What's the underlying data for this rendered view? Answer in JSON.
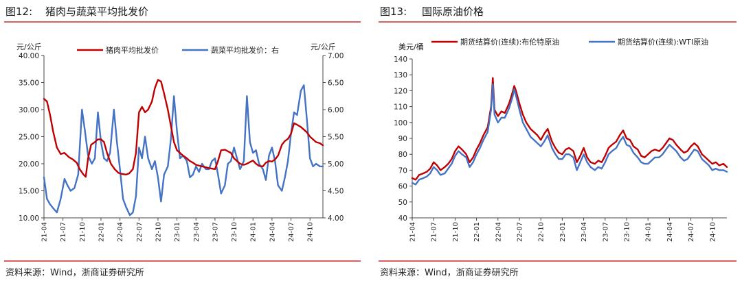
{
  "left_panel": {
    "figure_label": "图12:",
    "figure_title": "猪肉与蔬菜平均批发价",
    "source": "资料来源：Wind，浙商证券研究所"
  },
  "right_panel": {
    "figure_label": "图13:",
    "figure_title": "国际原油价格",
    "source": "资料来源：Wind，浙商证券研究所"
  },
  "colors": {
    "red": "#c00000",
    "blue": "#4472c4",
    "rule": "#c00000"
  },
  "chart_data": [
    {
      "type": "line",
      "y_left_unit": "元/公斤",
      "y_right_unit": "元/公斤",
      "ylim_left": [
        10,
        40
      ],
      "ylim_right": [
        4,
        7
      ],
      "y_left_ticks": [
        "10.00",
        "15.00",
        "20.00",
        "25.00",
        "30.00",
        "35.00",
        "40.00"
      ],
      "y_right_ticks": [
        "4.00",
        "4.50",
        "5.00",
        "5.50",
        "6.00",
        "6.50",
        "7.00"
      ],
      "x_ticks": [
        "21-04",
        "21-07",
        "21-10",
        "22-01",
        "22-04",
        "22-07",
        "22-10",
        "23-01",
        "23-04",
        "23-07",
        "23-10",
        "24-01",
        "24-04",
        "24-07",
        "24-10"
      ],
      "x_range": [
        2021.25,
        2024.92
      ],
      "grid": false,
      "legend_position": "top",
      "series": [
        {
          "name": "猪肉平均批发价",
          "axis": "left",
          "color": "#c00000",
          "x": [
            2021.25,
            2021.29,
            2021.33,
            2021.37,
            2021.42,
            2021.47,
            2021.52,
            2021.58,
            2021.63,
            2021.68,
            2021.72,
            2021.77,
            2021.8,
            2021.83,
            2021.87,
            2021.92,
            2021.96,
            2022.0,
            2022.04,
            2022.08,
            2022.13,
            2022.18,
            2022.23,
            2022.28,
            2022.33,
            2022.37,
            2022.42,
            2022.46,
            2022.5,
            2022.54,
            2022.58,
            2022.62,
            2022.67,
            2022.71,
            2022.75,
            2022.79,
            2022.83,
            2022.88,
            2022.92,
            2022.96,
            2023.0,
            2023.04,
            2023.08,
            2023.13,
            2023.17,
            2023.21,
            2023.25,
            2023.33,
            2023.42,
            2023.5,
            2023.54,
            2023.58,
            2023.63,
            2023.67,
            2023.71,
            2023.75,
            2023.79,
            2023.83,
            2023.88,
            2023.92,
            2023.96,
            2024.0,
            2024.04,
            2024.08,
            2024.13,
            2024.17,
            2024.21,
            2024.25,
            2024.29,
            2024.33,
            2024.38,
            2024.42,
            2024.46,
            2024.5,
            2024.54,
            2024.58,
            2024.63,
            2024.67,
            2024.71,
            2024.75,
            2024.79,
            2024.83,
            2024.88,
            2024.92
          ],
          "y": [
            32,
            31.5,
            29,
            26,
            23,
            21.8,
            22,
            21.2,
            20.8,
            20.2,
            19,
            18,
            17.6,
            21,
            23.5,
            24,
            24.5,
            24.5,
            24,
            22,
            20,
            19,
            18.3,
            18.1,
            18,
            18.2,
            19,
            22,
            29.5,
            30.5,
            29.5,
            30,
            31.5,
            34,
            35.5,
            35.2,
            33,
            30,
            27,
            24,
            22.5,
            22,
            21.5,
            21,
            20.5,
            20.2,
            19.8,
            19.5,
            19.2,
            19,
            20.5,
            22.5,
            22.6,
            22.3,
            22,
            21,
            20.5,
            20,
            19.8,
            20,
            20.3,
            20.6,
            20,
            19.6,
            19.5,
            20.2,
            20.5,
            20.4,
            20.8,
            21.5,
            23.5,
            24.2,
            24.6,
            25.5,
            27.5,
            27.2,
            26.8,
            26.3,
            25.8,
            25,
            24.5,
            24,
            23.8,
            23.4
          ]
        },
        {
          "name": "蔬菜平均批发价：右",
          "axis": "right",
          "color": "#4472c4",
          "x": [
            2021.25,
            2021.29,
            2021.33,
            2021.37,
            2021.42,
            2021.47,
            2021.52,
            2021.56,
            2021.6,
            2021.65,
            2021.7,
            2021.75,
            2021.79,
            2021.83,
            2021.88,
            2021.92,
            2021.96,
            2022.0,
            2022.04,
            2022.08,
            2022.12,
            2022.17,
            2022.21,
            2022.25,
            2022.29,
            2022.33,
            2022.38,
            2022.42,
            2022.46,
            2022.5,
            2022.54,
            2022.58,
            2022.62,
            2022.67,
            2022.71,
            2022.75,
            2022.79,
            2022.83,
            2022.88,
            2022.92,
            2022.96,
            2023.0,
            2023.04,
            2023.08,
            2023.13,
            2023.17,
            2023.21,
            2023.25,
            2023.29,
            2023.33,
            2023.38,
            2023.42,
            2023.46,
            2023.5,
            2023.54,
            2023.58,
            2023.63,
            2023.67,
            2023.71,
            2023.75,
            2023.79,
            2023.83,
            2023.88,
            2023.92,
            2023.96,
            2024.0,
            2024.04,
            2024.08,
            2024.13,
            2024.17,
            2024.21,
            2024.25,
            2024.29,
            2024.33,
            2024.38,
            2024.42,
            2024.46,
            2024.5,
            2024.54,
            2024.58,
            2024.63,
            2024.67,
            2024.71,
            2024.75,
            2024.79,
            2024.83,
            2024.88,
            2024.92
          ],
          "y": [
            4.75,
            4.35,
            4.25,
            4.18,
            4.1,
            4.35,
            4.72,
            4.6,
            4.5,
            4.55,
            4.8,
            6.0,
            5.6,
            5.15,
            5.0,
            5.1,
            5.95,
            5.4,
            5.1,
            5.05,
            5.2,
            6.0,
            5.4,
            4.9,
            4.35,
            4.2,
            4.05,
            4.1,
            4.4,
            5.3,
            5.1,
            5.5,
            5.1,
            4.9,
            5.05,
            4.75,
            4.3,
            4.8,
            4.95,
            5.45,
            6.25,
            5.6,
            5.1,
            5.15,
            5.05,
            4.75,
            4.8,
            4.95,
            4.85,
            5.0,
            4.9,
            4.9,
            5.05,
            5.1,
            4.8,
            4.45,
            4.6,
            5.0,
            5.05,
            5.3,
            5.1,
            4.9,
            5.05,
            6.25,
            5.4,
            5.2,
            5.25,
            5.0,
            4.9,
            4.7,
            5.15,
            5.3,
            5.05,
            4.6,
            4.5,
            4.75,
            5.05,
            5.55,
            5.95,
            5.9,
            6.35,
            6.45,
            5.8,
            5.1,
            4.95,
            5.0,
            4.95,
            4.95
          ]
        }
      ]
    },
    {
      "type": "line",
      "y_unit": "美元/桶",
      "ylim": [
        40,
        140
      ],
      "y_ticks": [
        "40",
        "50",
        "60",
        "70",
        "80",
        "90",
        "100",
        "110",
        "120",
        "130",
        "140"
      ],
      "x_ticks": [
        "21-04",
        "21-07",
        "21-10",
        "22-01",
        "22-04",
        "22-07",
        "22-10",
        "23-01",
        "23-04",
        "23-07",
        "23-10",
        "24-01",
        "24-04",
        "24-07",
        "24-10"
      ],
      "x_range": [
        2021.25,
        2024.92
      ],
      "grid": false,
      "legend_position": "top",
      "series": [
        {
          "name": "期货结算价(连续):布伦特原油",
          "color": "#c00000",
          "x": [
            2021.25,
            2021.29,
            2021.33,
            2021.38,
            2021.42,
            2021.46,
            2021.5,
            2021.54,
            2021.58,
            2021.63,
            2021.67,
            2021.71,
            2021.75,
            2021.79,
            2021.83,
            2021.88,
            2021.92,
            2021.96,
            2022.0,
            2022.04,
            2022.08,
            2022.13,
            2022.17,
            2022.19,
            2022.21,
            2022.25,
            2022.29,
            2022.33,
            2022.38,
            2022.42,
            2022.44,
            2022.46,
            2022.5,
            2022.54,
            2022.58,
            2022.63,
            2022.67,
            2022.71,
            2022.75,
            2022.79,
            2022.83,
            2022.88,
            2022.92,
            2022.96,
            2023.0,
            2023.04,
            2023.08,
            2023.13,
            2023.17,
            2023.21,
            2023.25,
            2023.29,
            2023.33,
            2023.38,
            2023.42,
            2023.46,
            2023.5,
            2023.54,
            2023.58,
            2023.63,
            2023.67,
            2023.71,
            2023.75,
            2023.79,
            2023.83,
            2023.88,
            2023.92,
            2023.96,
            2024.0,
            2024.04,
            2024.08,
            2024.13,
            2024.17,
            2024.21,
            2024.25,
            2024.29,
            2024.33,
            2024.38,
            2024.42,
            2024.46,
            2024.5,
            2024.54,
            2024.58,
            2024.63,
            2024.67,
            2024.71,
            2024.75,
            2024.79,
            2024.83,
            2024.88,
            2024.92
          ],
          "y": [
            65,
            64,
            67,
            68,
            69,
            71,
            75,
            73,
            70,
            72,
            74,
            77,
            82,
            85,
            83,
            80,
            75,
            78,
            83,
            87,
            92,
            97,
            110,
            128,
            108,
            104,
            107,
            106,
            112,
            119,
            123,
            120,
            112,
            105,
            100,
            96,
            94,
            92,
            89,
            93,
            96,
            88,
            84,
            81,
            80,
            83,
            84,
            82,
            75,
            79,
            84,
            78,
            75,
            74,
            76,
            75,
            79,
            84,
            86,
            88,
            92,
            95,
            90,
            89,
            85,
            83,
            79,
            78,
            80,
            82,
            83,
            82,
            84,
            87,
            90,
            89,
            86,
            83,
            81,
            82,
            85,
            87,
            85,
            80,
            78,
            76,
            74,
            75,
            73,
            74,
            72
          ]
        },
        {
          "name": "期货结算价(连续):WTI原油",
          "color": "#4472c4",
          "x": [
            2021.25,
            2021.29,
            2021.33,
            2021.38,
            2021.42,
            2021.46,
            2021.5,
            2021.54,
            2021.58,
            2021.63,
            2021.67,
            2021.71,
            2021.75,
            2021.79,
            2021.83,
            2021.88,
            2021.92,
            2021.96,
            2022.0,
            2022.04,
            2022.08,
            2022.13,
            2022.17,
            2022.19,
            2022.21,
            2022.25,
            2022.29,
            2022.33,
            2022.38,
            2022.42,
            2022.44,
            2022.46,
            2022.5,
            2022.54,
            2022.58,
            2022.63,
            2022.67,
            2022.71,
            2022.75,
            2022.79,
            2022.83,
            2022.88,
            2022.92,
            2022.96,
            2023.0,
            2023.04,
            2023.08,
            2023.13,
            2023.17,
            2023.21,
            2023.25,
            2023.29,
            2023.33,
            2023.38,
            2023.42,
            2023.46,
            2023.5,
            2023.54,
            2023.58,
            2023.63,
            2023.67,
            2023.71,
            2023.75,
            2023.79,
            2023.83,
            2023.88,
            2023.92,
            2023.96,
            2024.0,
            2024.04,
            2024.08,
            2024.13,
            2024.17,
            2024.21,
            2024.25,
            2024.29,
            2024.33,
            2024.38,
            2024.42,
            2024.46,
            2024.5,
            2024.54,
            2024.58,
            2024.63,
            2024.67,
            2024.71,
            2024.75,
            2024.79,
            2024.83,
            2024.88,
            2024.92
          ],
          "y": [
            62,
            61,
            64,
            65,
            66,
            68,
            72,
            70,
            67,
            68,
            71,
            74,
            79,
            82,
            80,
            78,
            72,
            75,
            80,
            84,
            89,
            94,
            108,
            124,
            105,
            100,
            103,
            103,
            109,
            116,
            121,
            117,
            108,
            100,
            96,
            91,
            89,
            87,
            85,
            88,
            92,
            84,
            80,
            77,
            77,
            80,
            80,
            78,
            70,
            75,
            80,
            75,
            72,
            70,
            72,
            71,
            75,
            80,
            82,
            84,
            88,
            91,
            86,
            85,
            81,
            78,
            75,
            74,
            74,
            76,
            78,
            78,
            80,
            83,
            86,
            84,
            82,
            78,
            76,
            77,
            80,
            83,
            82,
            77,
            75,
            73,
            70,
            71,
            70,
            70,
            69
          ]
        }
      ]
    }
  ]
}
